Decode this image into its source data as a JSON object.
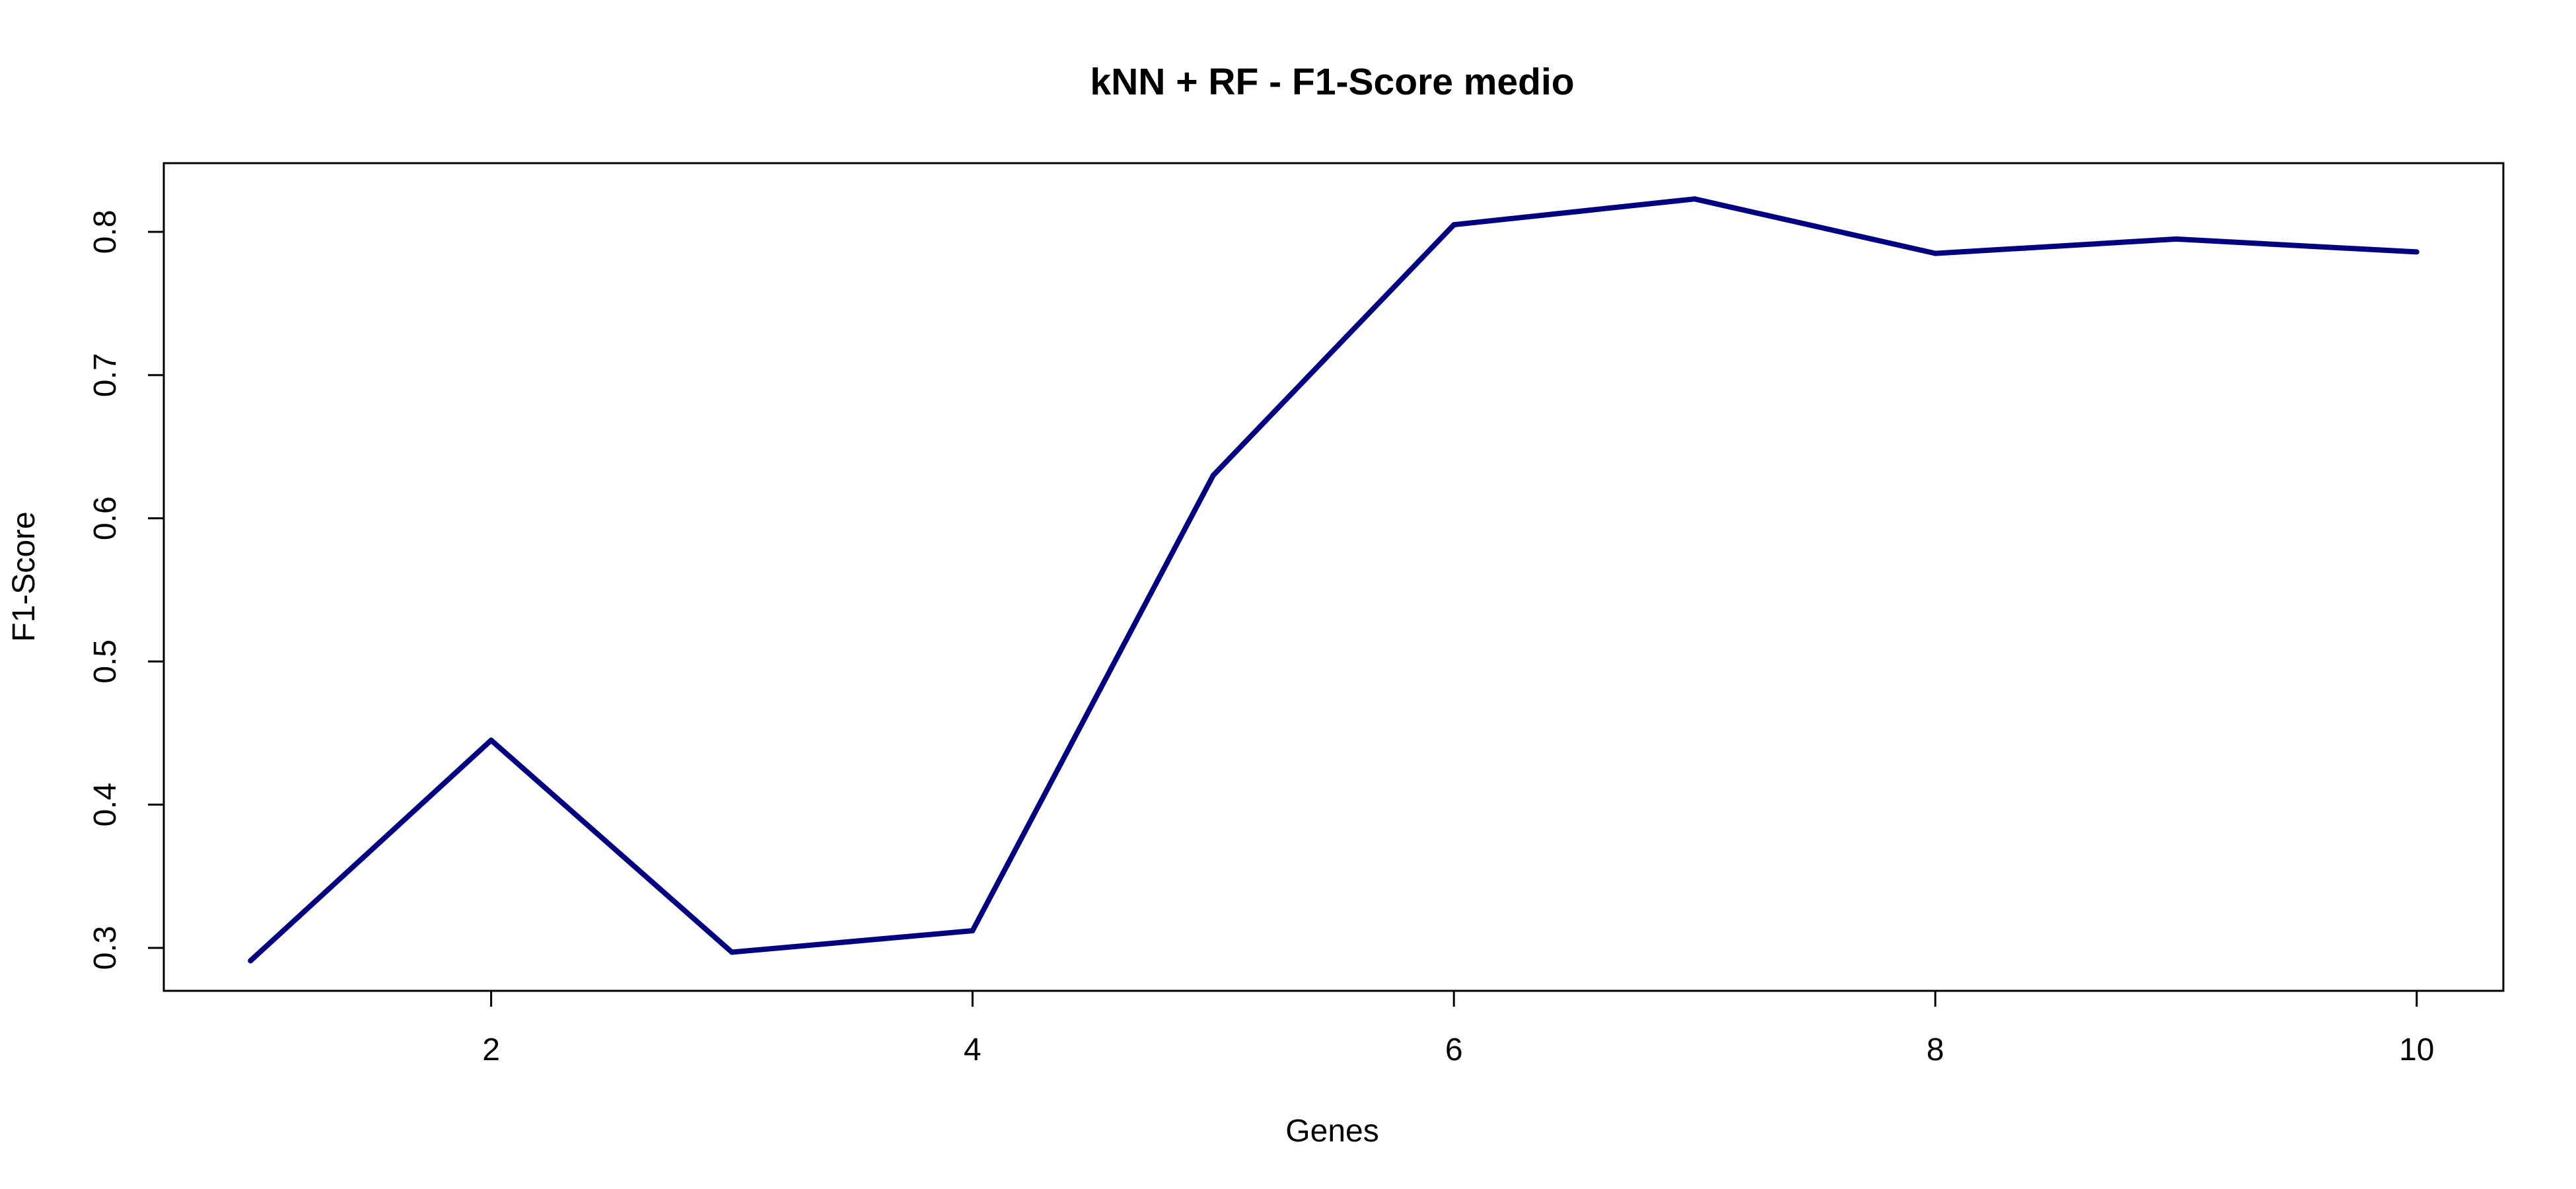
{
  "chart_data": {
    "type": "line",
    "title": "kNN + RF - F1-Score medio",
    "xlabel": "Genes",
    "ylabel": "F1-Score",
    "x": [
      1,
      2,
      3,
      4,
      5,
      6,
      7,
      8,
      9,
      10
    ],
    "series": [
      {
        "values": [
          0.291,
          0.445,
          0.297,
          0.312,
          0.63,
          0.805,
          0.823,
          0.785,
          0.795,
          0.786
        ],
        "color": "#000080"
      }
    ],
    "xlim": [
      0.64,
      10.36
    ],
    "ylim": [
      0.27,
      0.848
    ],
    "x_ticks": [
      2,
      4,
      6,
      8,
      10
    ],
    "x_tick_labels": [
      "2",
      "4",
      "6",
      "8",
      "10"
    ],
    "y_ticks": [
      0.3,
      0.4,
      0.5,
      0.6,
      0.7,
      0.8
    ],
    "y_tick_labels": [
      "0.3",
      "0.4",
      "0.5",
      "0.6",
      "0.7",
      "0.8"
    ],
    "grid": false,
    "legend": "none"
  }
}
